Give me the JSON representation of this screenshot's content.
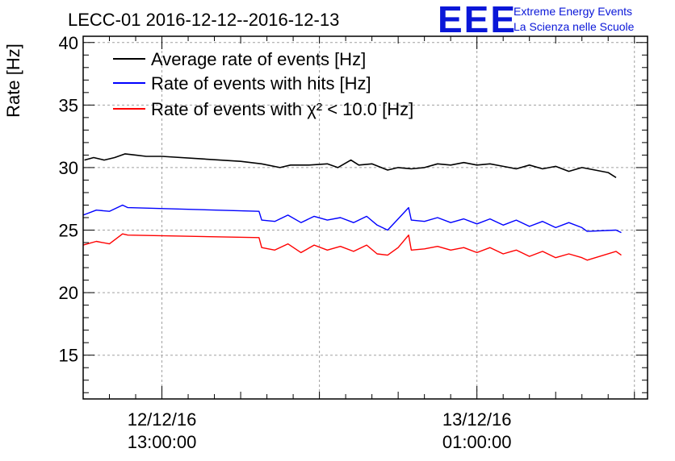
{
  "chart_data": {
    "type": "line",
    "title": "LECC-01 2016-12-12--2016-12-13",
    "ylabel": "Rate [Hz]",
    "xlabel": "",
    "ylim": [
      11.5,
      40.5
    ],
    "xlim": [
      -3.0,
      18.5
    ],
    "grid": true,
    "legend_position": "top-left",
    "y_ticks": [
      15,
      20,
      25,
      30,
      35,
      40
    ],
    "x_ticks": [
      {
        "x": 0,
        "line1": "12/12/16",
        "line2": "13:00:00"
      },
      {
        "x": 12,
        "line1": "13/12/16",
        "line2": "01:00:00"
      }
    ],
    "x_unit": "hours since 2016-12-12 13:00:00",
    "series": [
      {
        "name": "Average rate of events [Hz]",
        "color": "#000000",
        "x": [
          -2.95,
          -2.6,
          -2.2,
          -1.8,
          -1.4,
          -1.0,
          -0.6,
          0,
          1.5,
          3.0,
          3.8,
          4.5,
          4.9,
          5.6,
          6.3,
          6.7,
          7.2,
          7.5,
          8.0,
          8.6,
          9.0,
          9.5,
          10.0,
          10.5,
          11.0,
          11.5,
          12.0,
          12.5,
          13.0,
          13.5,
          14.0,
          14.5,
          15.0,
          15.5,
          16.0,
          16.5,
          17.0,
          17.3
        ],
        "values": [
          30.6,
          30.8,
          30.6,
          30.8,
          31.1,
          31.0,
          30.9,
          30.9,
          30.7,
          30.5,
          30.3,
          30.0,
          30.2,
          30.2,
          30.3,
          30.0,
          30.6,
          30.2,
          30.3,
          29.8,
          30.0,
          29.9,
          30.0,
          30.3,
          30.2,
          30.4,
          30.2,
          30.3,
          30.1,
          29.9,
          30.2,
          29.9,
          30.1,
          29.7,
          30.0,
          29.8,
          29.6,
          29.2
        ]
      },
      {
        "name": "Rate of events with hits [Hz]",
        "color": "#0000ff",
        "x": [
          -3.0,
          -2.5,
          -2.0,
          -1.5,
          -1.3,
          3.7,
          3.8,
          4.3,
          4.8,
          5.3,
          5.8,
          6.3,
          6.8,
          7.3,
          7.8,
          8.2,
          8.6,
          9.0,
          9.4,
          9.5,
          10.0,
          10.5,
          11.0,
          11.5,
          12.0,
          12.5,
          13.0,
          13.5,
          14.0,
          14.5,
          15.0,
          15.5,
          16.0,
          16.2,
          17.3,
          17.5
        ],
        "values": [
          26.2,
          26.6,
          26.5,
          27.0,
          26.8,
          26.5,
          25.8,
          25.7,
          26.2,
          25.6,
          26.1,
          25.8,
          26.0,
          25.6,
          26.1,
          25.4,
          25.0,
          25.9,
          26.8,
          25.8,
          25.7,
          26.0,
          25.6,
          25.9,
          25.5,
          25.9,
          25.4,
          25.8,
          25.3,
          25.7,
          25.2,
          25.6,
          25.2,
          24.9,
          25.0,
          24.8
        ]
      },
      {
        "name": "Rate of events with χ² < 10.0 [Hz]",
        "color": "#ff0000",
        "x": [
          -3.0,
          -2.5,
          -2.0,
          -1.5,
          -1.3,
          3.7,
          3.8,
          4.3,
          4.8,
          5.3,
          5.8,
          6.3,
          6.8,
          7.3,
          7.8,
          8.2,
          8.6,
          9.0,
          9.4,
          9.5,
          10.0,
          10.5,
          11.0,
          11.5,
          12.0,
          12.5,
          13.0,
          13.5,
          14.0,
          14.5,
          15.0,
          15.5,
          16.0,
          16.2,
          17.3,
          17.5
        ],
        "values": [
          23.8,
          24.1,
          23.9,
          24.7,
          24.6,
          24.4,
          23.6,
          23.4,
          23.9,
          23.2,
          23.8,
          23.4,
          23.7,
          23.3,
          23.8,
          23.1,
          23.0,
          23.6,
          24.6,
          23.4,
          23.5,
          23.7,
          23.4,
          23.6,
          23.2,
          23.6,
          23.1,
          23.4,
          22.9,
          23.3,
          22.8,
          23.1,
          22.8,
          22.6,
          23.3,
          23.0
        ]
      }
    ]
  },
  "branding": {
    "logo": "EEE",
    "line1": "Extreme Energy Events",
    "line2": "La Scienza nelle Scuole"
  }
}
